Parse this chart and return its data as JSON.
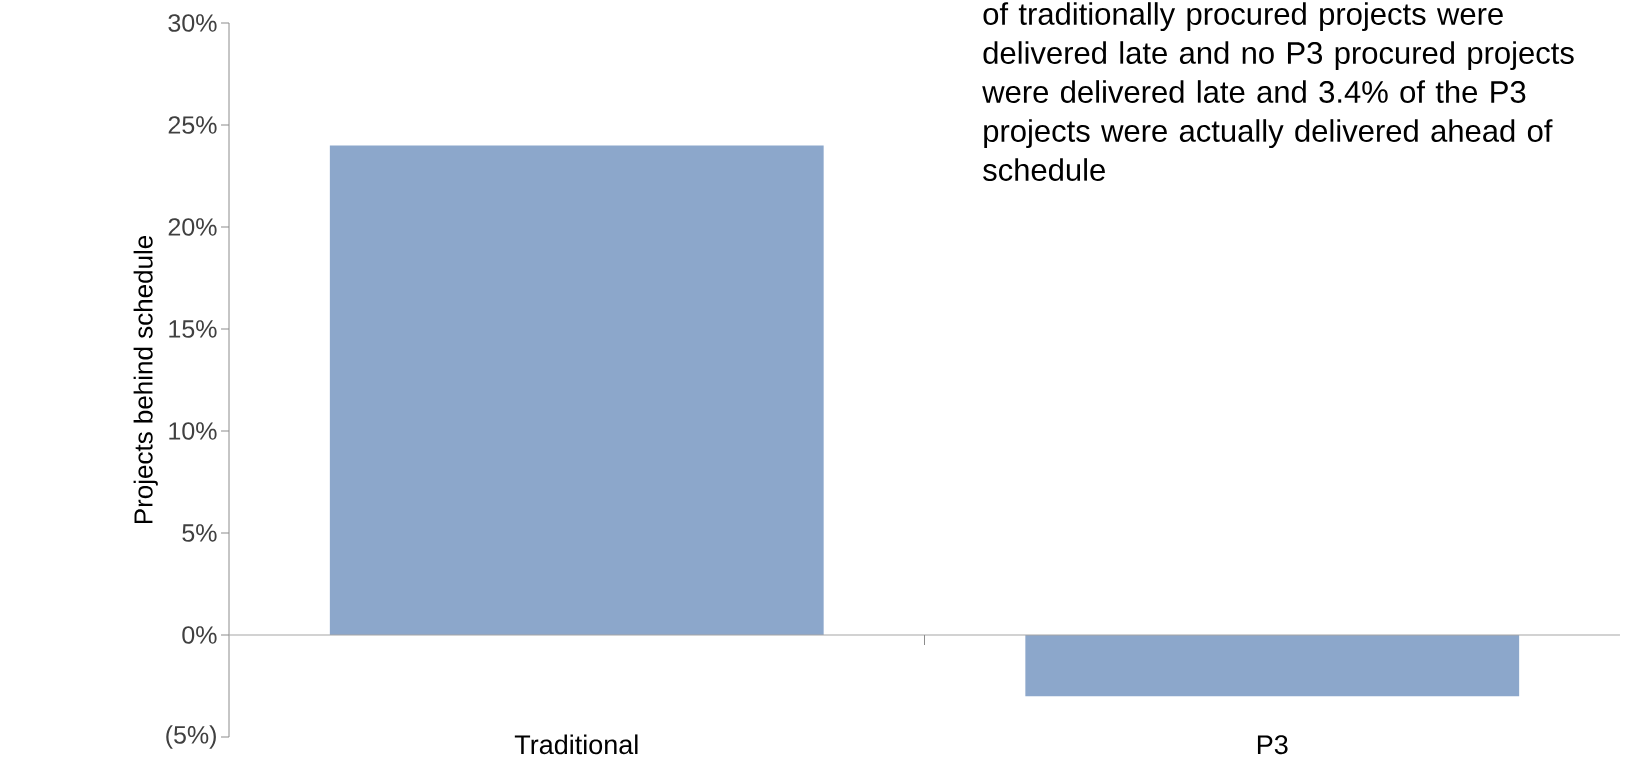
{
  "chart_data": {
    "type": "bar",
    "ylabel": "Projects behind schedule",
    "categories": [
      "Traditional",
      "P3"
    ],
    "values": [
      24,
      -3
    ],
    "color": "#8ca7cb",
    "ylim": [
      -5,
      30
    ],
    "yticks": [
      {
        "value": -5,
        "label": "(5%)"
      },
      {
        "value": 0,
        "label": "0%"
      },
      {
        "value": 5,
        "label": "5%"
      },
      {
        "value": 10,
        "label": "10%"
      },
      {
        "value": 15,
        "label": "15%"
      },
      {
        "value": 20,
        "label": "20%"
      },
      {
        "value": 25,
        "label": "25%"
      },
      {
        "value": 30,
        "label": "30%"
      }
    ],
    "annotations": [
      "of traditionally procured projects were delivered late and no P3 procured projects were delivered late and 3.4% of the P3 projects were actually delivered ahead of schedule"
    ],
    "ref_lines": [
      {
        "axis": "y",
        "value": 0,
        "color": "#a6a6a6"
      }
    ]
  }
}
